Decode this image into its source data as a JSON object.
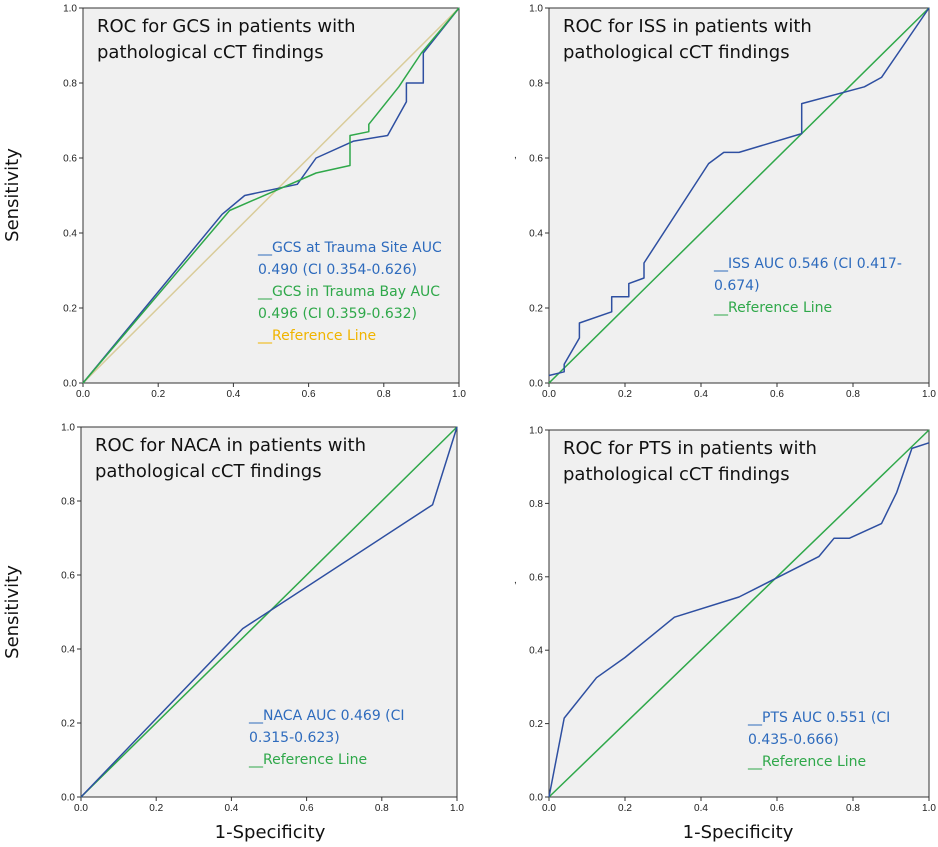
{
  "figure": {
    "y_axis_title": "Sensitivity",
    "x_axis_title": "1-Specificity",
    "stray_marks": [
      ",",
      ","
    ]
  },
  "chart_data": [
    {
      "type": "line",
      "title_lines": [
        "ROC for GCS in patients with",
        "pathological cCT findings"
      ],
      "xlim": [
        0,
        1
      ],
      "ylim": [
        0,
        1
      ],
      "xticks": [
        "0.0",
        "0.2",
        "0.4",
        "0.6",
        "0.8",
        "1.0"
      ],
      "yticks": [
        "0.0",
        "0.2",
        "0.4",
        "0.6",
        "0.8",
        "1.0"
      ],
      "series": [
        {
          "name": "GCS at Trauma Site",
          "color": "#2e4fa1",
          "points": [
            [
              0,
              0
            ],
            [
              0.37,
              0.45
            ],
            [
              0.43,
              0.5
            ],
            [
              0.57,
              0.53
            ],
            [
              0.62,
              0.6
            ],
            [
              0.72,
              0.645
            ],
            [
              0.81,
              0.66
            ],
            [
              0.86,
              0.75
            ],
            [
              0.86,
              0.8
            ],
            [
              0.905,
              0.8
            ],
            [
              0.905,
              0.88
            ],
            [
              1,
              1
            ]
          ]
        },
        {
          "name": "GCS in Trauma Bay",
          "color": "#2fa84a",
          "points": [
            [
              0,
              0
            ],
            [
              0.39,
              0.46
            ],
            [
              0.62,
              0.56
            ],
            [
              0.71,
              0.58
            ],
            [
              0.71,
              0.66
            ],
            [
              0.76,
              0.67
            ],
            [
              0.76,
              0.69
            ],
            [
              0.84,
              0.79
            ],
            [
              0.9,
              0.88
            ],
            [
              1,
              1
            ]
          ]
        },
        {
          "name": "Reference Line",
          "color": "#d9cc9a",
          "points": [
            [
              0,
              0
            ],
            [
              1,
              1
            ]
          ]
        }
      ],
      "legend": [
        {
          "text": "__GCS at  Trauma Site AUC",
          "color": "#2e6bbd"
        },
        {
          "text": "0.490 (CI 0.354-0.626)",
          "color": "#2e6bbd"
        },
        {
          "text": "__GCS in Trauma Bay AUC",
          "color": "#2fa84a"
        },
        {
          "text": "0.496 (CI 0.359-0.632)",
          "color": "#2fa84a"
        },
        {
          "text": "__Reference Line",
          "color": "#f0b400"
        }
      ]
    },
    {
      "type": "line",
      "title_lines": [
        "ROC for ISS in patients with",
        "pathological cCT findings"
      ],
      "xlim": [
        0,
        1
      ],
      "ylim": [
        0,
        1
      ],
      "xticks": [
        "0.0",
        "0.2",
        "0.4",
        "0.6",
        "0.8",
        "1.0"
      ],
      "yticks": [
        "0.0",
        "0.2",
        "0.4",
        "0.6",
        "0.8",
        "1.0"
      ],
      "series": [
        {
          "name": "ISS",
          "color": "#2e4fa1",
          "points": [
            [
              0,
              0.02
            ],
            [
              0.04,
              0.03
            ],
            [
              0.04,
              0.05
            ],
            [
              0.08,
              0.12
            ],
            [
              0.08,
              0.16
            ],
            [
              0.165,
              0.19
            ],
            [
              0.165,
              0.23
            ],
            [
              0.21,
              0.23
            ],
            [
              0.21,
              0.265
            ],
            [
              0.25,
              0.28
            ],
            [
              0.25,
              0.32
            ],
            [
              0.42,
              0.585
            ],
            [
              0.46,
              0.615
            ],
            [
              0.5,
              0.615
            ],
            [
              0.665,
              0.665
            ],
            [
              0.665,
              0.745
            ],
            [
              0.83,
              0.79
            ],
            [
              0.875,
              0.815
            ],
            [
              1,
              1
            ]
          ]
        },
        {
          "name": "Reference Line",
          "color": "#2fa84a",
          "points": [
            [
              0,
              0
            ],
            [
              1,
              1
            ]
          ]
        }
      ],
      "legend": [
        {
          "text": "__ISS AUC 0.546 (CI 0.417-",
          "color": "#2e6bbd"
        },
        {
          "text": "0.674)",
          "color": "#2e6bbd"
        },
        {
          "text": "__Reference Line",
          "color": "#2fa84a"
        }
      ]
    },
    {
      "type": "line",
      "title_lines": [
        "ROC for NACA in patients with",
        "pathological cCT findings"
      ],
      "xlim": [
        0,
        1
      ],
      "ylim": [
        0,
        1
      ],
      "xticks": [
        "0.0",
        "0.2",
        "0.4",
        "0.6",
        "0.8",
        "1.0"
      ],
      "yticks": [
        "0.0",
        "0.2",
        "0.4",
        "0.6",
        "0.8",
        "1.0"
      ],
      "series": [
        {
          "name": "NACA",
          "color": "#2e4fa1",
          "points": [
            [
              0,
              0
            ],
            [
              0.43,
              0.455
            ],
            [
              0.935,
              0.79
            ],
            [
              1,
              1
            ]
          ]
        },
        {
          "name": "Reference Line",
          "color": "#2fa84a",
          "points": [
            [
              0,
              0
            ],
            [
              1,
              1
            ]
          ]
        }
      ],
      "legend": [
        {
          "text": "__NACA AUC 0.469 (CI",
          "color": "#2e6bbd"
        },
        {
          "text": "0.315-0.623)",
          "color": "#2e6bbd"
        },
        {
          "text": "__Reference Line",
          "color": "#2fa84a"
        }
      ]
    },
    {
      "type": "line",
      "title_lines": [
        "ROC for PTS in patients with",
        "pathological cCT findings"
      ],
      "xlim": [
        0,
        1
      ],
      "ylim": [
        0,
        1
      ],
      "xticks": [
        "0.0",
        "0.2",
        "0.4",
        "0.6",
        "0.8",
        "1.0"
      ],
      "yticks": [
        "0.0",
        "0.2",
        "0.4",
        "0.6",
        "0.8",
        "1.0"
      ],
      "series": [
        {
          "name": "PTS",
          "color": "#2e4fa1",
          "points": [
            [
              0,
              0
            ],
            [
              0.04,
              0.215
            ],
            [
              0.125,
              0.325
            ],
            [
              0.2,
              0.38
            ],
            [
              0.33,
              0.49
            ],
            [
              0.5,
              0.545
            ],
            [
              0.71,
              0.655
            ],
            [
              0.75,
              0.705
            ],
            [
              0.79,
              0.705
            ],
            [
              0.875,
              0.745
            ],
            [
              0.915,
              0.83
            ],
            [
              0.955,
              0.95
            ],
            [
              1,
              0.965
            ]
          ]
        },
        {
          "name": "Reference Line",
          "color": "#2fa84a",
          "points": [
            [
              0,
              0
            ],
            [
              1,
              1
            ]
          ]
        }
      ],
      "legend": [
        {
          "text": "__PTS AUC 0.551 (CI",
          "color": "#2e6bbd"
        },
        {
          "text": "0.435-0.666)",
          "color": "#2e6bbd"
        },
        {
          "text": "__Reference Line",
          "color": "#2fa84a"
        }
      ]
    }
  ]
}
